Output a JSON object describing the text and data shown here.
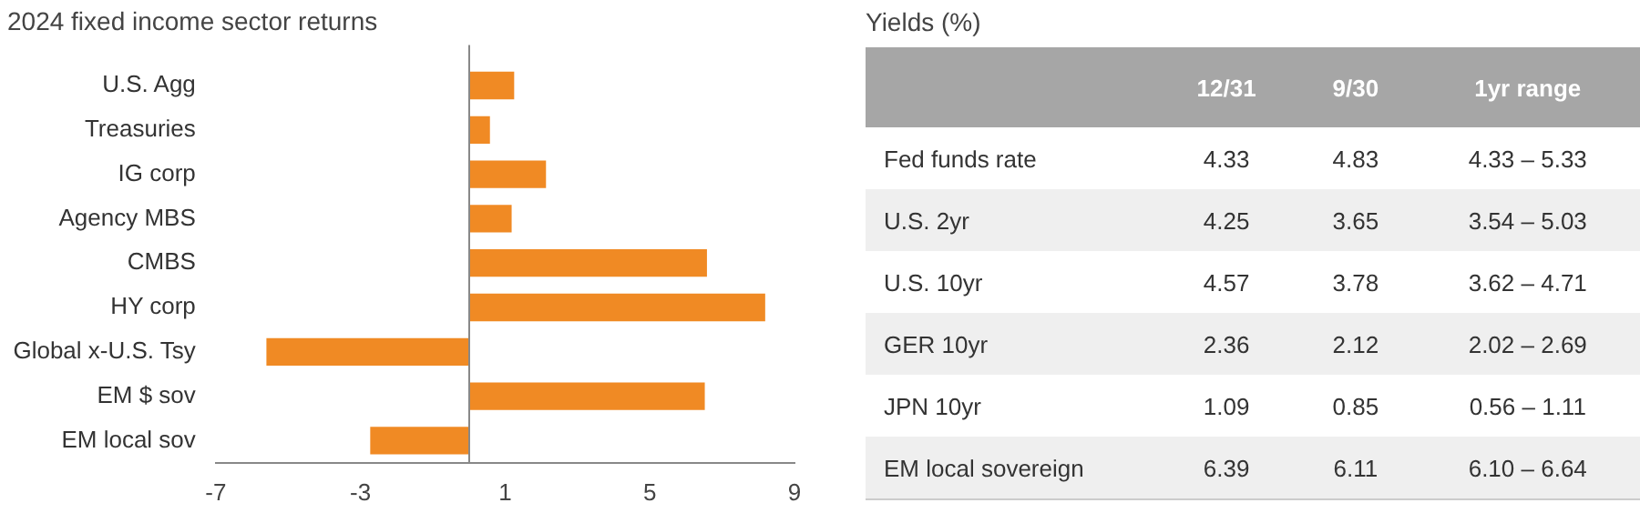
{
  "chart_data": [
    {
      "type": "bar",
      "title": "2024 fixed income sector returns",
      "orientation": "horizontal",
      "categories": [
        "U.S. Agg",
        "Treasuries",
        "IG corp",
        "Agency MBS",
        "CMBS",
        "HY corp",
        "Global x-U.S. Tsy",
        "EM $ sov",
        "EM local sov"
      ],
      "values": [
        1.25,
        0.58,
        2.13,
        1.18,
        6.58,
        8.19,
        -5.6,
        6.52,
        -2.73
      ],
      "color": "#f08a24",
      "xlim": [
        -7,
        9
      ],
      "xticks": [
        -7,
        -3,
        1,
        5,
        9
      ],
      "grid": false,
      "legend": false
    },
    {
      "type": "other",
      "title": "Yields (%)",
      "categories": [
        "12/31",
        "9/30",
        "1yr range"
      ],
      "y_categories": [
        "Fed funds rate",
        "U.S. 2yr",
        "U.S. 10yr",
        "GER 10yr",
        "JPN 10yr",
        "EM local sovereign"
      ],
      "cell_labels": [
        [
          "4.33",
          "4.83",
          "4.33 – 5.33"
        ],
        [
          "4.25",
          "3.65",
          "3.54 – 5.03"
        ],
        [
          "4.57",
          "3.78",
          "3.62 – 4.71"
        ],
        [
          "2.36",
          "2.12",
          "2.02 – 2.69"
        ],
        [
          "1.09",
          "0.85",
          "0.56 – 1.11"
        ],
        [
          "6.39",
          "6.11",
          "6.10 – 6.64"
        ]
      ]
    }
  ]
}
